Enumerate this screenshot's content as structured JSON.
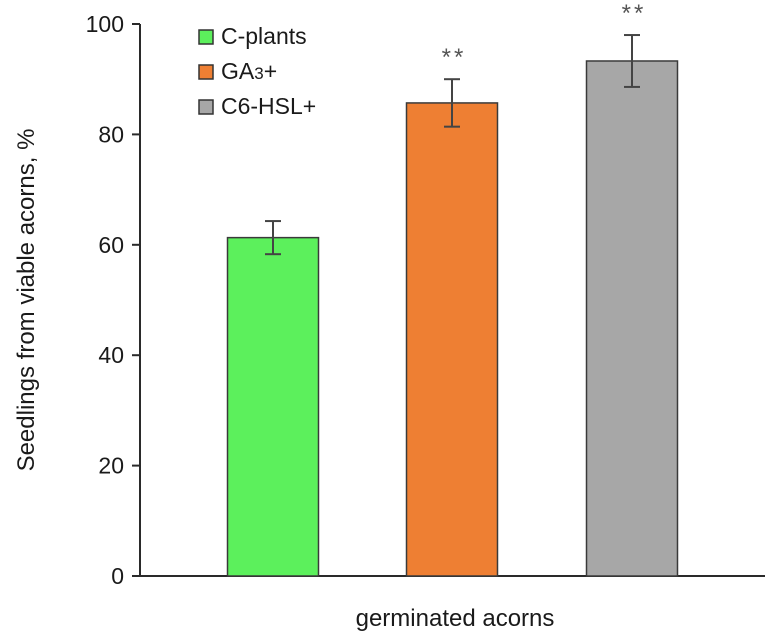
{
  "chart_data": {
    "type": "bar",
    "title": "",
    "xlabel": "germinated acorns",
    "ylabel": "Seedlings  from viable  acorns, %",
    "ylim": [
      0,
      100
    ],
    "yticks": [
      0,
      20,
      40,
      60,
      80,
      100
    ],
    "grid": false,
    "legend_position": "top-left",
    "categories": [
      "germinated acorns"
    ],
    "series": [
      {
        "name": "C-plants",
        "values": [
          61.3
        ],
        "error": [
          3
        ],
        "significance": "",
        "color": "#5cf05c"
      },
      {
        "name": "GA3+",
        "values": [
          85.7
        ],
        "error": [
          4.3
        ],
        "significance": "**",
        "color": "#ee7f33"
      },
      {
        "name": "C6-HSL+",
        "values": [
          93.3
        ],
        "error": [
          4.7
        ],
        "significance": "**",
        "color": "#a7a7a7"
      }
    ]
  }
}
